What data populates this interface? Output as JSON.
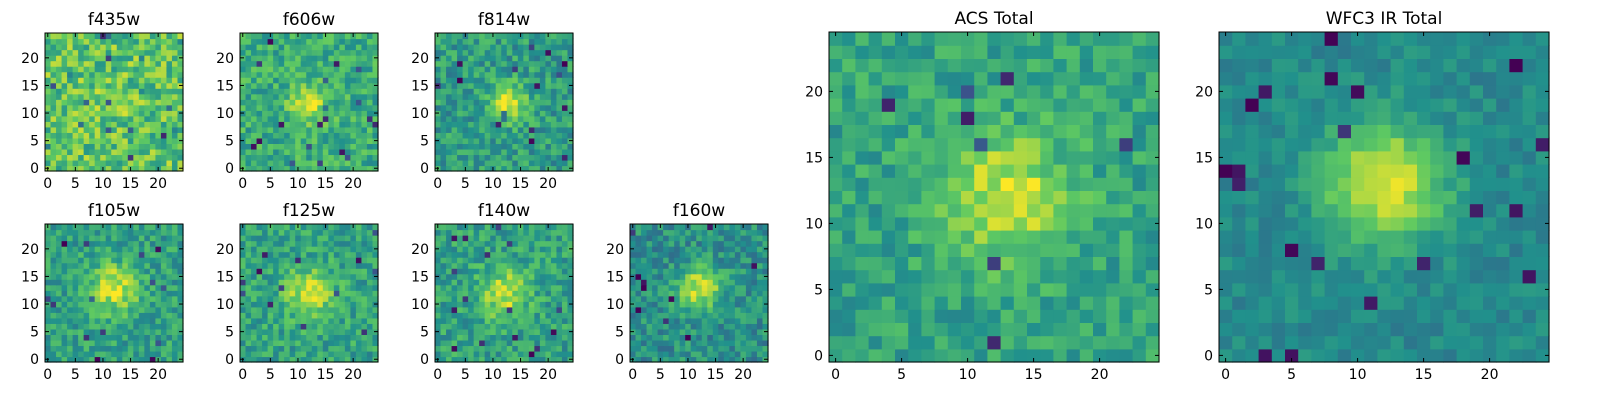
{
  "figure": {
    "colormap": "viridis",
    "colormap_stops": [
      "#440154",
      "#3b528b",
      "#21918c",
      "#5ec962",
      "#fde725"
    ]
  },
  "chart_data": [
    {
      "type": "heatmap",
      "title": "f435w",
      "grid_size": 25,
      "xticks": [
        "0",
        "5",
        "10",
        "15",
        "20"
      ],
      "yticks": [
        "0",
        "5",
        "10",
        "15",
        "20"
      ],
      "xlim": [
        0,
        25
      ],
      "ylim": [
        0,
        25
      ],
      "peak": {
        "x": 12,
        "y": 12
      },
      "peak_strength": 0.05,
      "sigma": 2.5,
      "background_level": 0.72,
      "noise": 0.2
    },
    {
      "type": "heatmap",
      "title": "f606w",
      "grid_size": 25,
      "xticks": [
        "0",
        "5",
        "10",
        "15",
        "20"
      ],
      "yticks": [
        "0",
        "5",
        "10",
        "15",
        "20"
      ],
      "xlim": [
        0,
        25
      ],
      "ylim": [
        0,
        25
      ],
      "peak": {
        "x": 12,
        "y": 12
      },
      "peak_strength": 0.3,
      "sigma": 2.5,
      "background_level": 0.62,
      "noise": 0.16
    },
    {
      "type": "heatmap",
      "title": "f814w",
      "grid_size": 25,
      "xticks": [
        "0",
        "5",
        "10",
        "15",
        "20"
      ],
      "yticks": [
        "0",
        "5",
        "10",
        "15",
        "20"
      ],
      "xlim": [
        0,
        25
      ],
      "ylim": [
        0,
        25
      ],
      "peak": {
        "x": 13,
        "y": 12
      },
      "peak_strength": 0.42,
      "sigma": 2.3,
      "background_level": 0.55,
      "noise": 0.16
    },
    {
      "type": "heatmap",
      "title": "f105w",
      "grid_size": 25,
      "xticks": [
        "0",
        "5",
        "10",
        "15",
        "20"
      ],
      "yticks": [
        "0",
        "5",
        "10",
        "15",
        "20"
      ],
      "xlim": [
        0,
        25
      ],
      "ylim": [
        0,
        25
      ],
      "peak": {
        "x": 12,
        "y": 13
      },
      "peak_strength": 0.38,
      "sigma": 3,
      "background_level": 0.57,
      "noise": 0.15
    },
    {
      "type": "heatmap",
      "title": "f125w",
      "grid_size": 25,
      "xticks": [
        "0",
        "5",
        "10",
        "15",
        "20"
      ],
      "yticks": [
        "0",
        "5",
        "10",
        "15",
        "20"
      ],
      "xlim": [
        0,
        25
      ],
      "ylim": [
        0,
        25
      ],
      "peak": {
        "x": 12,
        "y": 12
      },
      "peak_strength": 0.35,
      "sigma": 3,
      "background_level": 0.58,
      "noise": 0.15
    },
    {
      "type": "heatmap",
      "title": "f140w",
      "grid_size": 25,
      "xticks": [
        "0",
        "5",
        "10",
        "15",
        "20"
      ],
      "yticks": [
        "0",
        "5",
        "10",
        "15",
        "20"
      ],
      "xlim": [
        0,
        25
      ],
      "ylim": [
        0,
        25
      ],
      "peak": {
        "x": 12,
        "y": 12
      },
      "peak_strength": 0.35,
      "sigma": 3,
      "background_level": 0.57,
      "noise": 0.15
    },
    {
      "type": "heatmap",
      "title": "f160w",
      "grid_size": 25,
      "xticks": [
        "0",
        "5",
        "10",
        "15",
        "20"
      ],
      "yticks": [
        "0",
        "5",
        "10",
        "15",
        "20"
      ],
      "xlim": [
        0,
        25
      ],
      "ylim": [
        0,
        25
      ],
      "peak": {
        "x": 12,
        "y": 13
      },
      "peak_strength": 0.45,
      "sigma": 2.7,
      "background_level": 0.5,
      "noise": 0.15
    },
    {
      "type": "heatmap",
      "title": "ACS Total",
      "grid_size": 25,
      "xticks": [
        "0",
        "5",
        "10",
        "15",
        "20"
      ],
      "yticks": [
        "0",
        "5",
        "10",
        "15",
        "20"
      ],
      "xlim": [
        0,
        25
      ],
      "ylim": [
        0,
        25
      ],
      "peak": {
        "x": 13,
        "y": 12
      },
      "peak_strength": 0.36,
      "sigma": 3.4,
      "background_level": 0.58,
      "noise": 0.13
    },
    {
      "type": "heatmap",
      "title": "WFC3 IR Total",
      "grid_size": 25,
      "xticks": [
        "0",
        "5",
        "10",
        "15",
        "20"
      ],
      "yticks": [
        "0",
        "5",
        "10",
        "15",
        "20"
      ],
      "xlim": [
        0,
        25
      ],
      "ylim": [
        0,
        25
      ],
      "peak": {
        "x": 12,
        "y": 13
      },
      "peak_strength": 0.5,
      "sigma": 3.2,
      "background_level": 0.47,
      "noise": 0.08
    }
  ]
}
